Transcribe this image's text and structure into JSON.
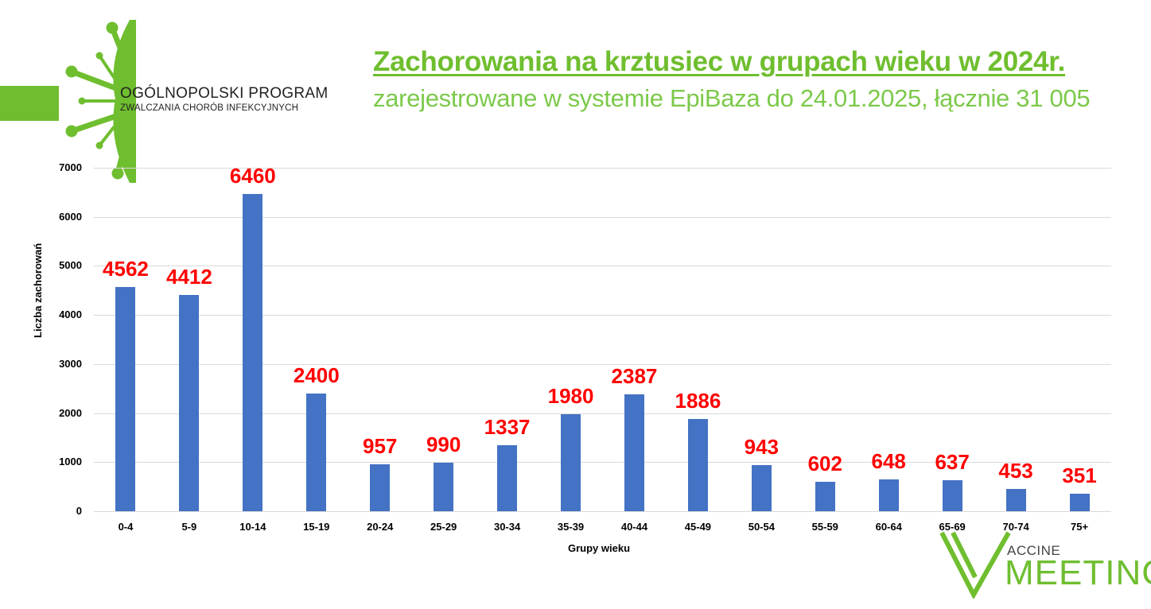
{
  "header": {
    "title": "Zachorowania na krztusiec w grupach wieku w 2024r.",
    "subtitle": "zarejestrowane w systemie EpiBaza do 24.01.2025, łącznie 31 005"
  },
  "logos": {
    "program_line1": "OGÓLNOPOLSKI PROGRAM",
    "program_line2": "ZWALCZANIA CHORÓB INFEKCYJNYCH",
    "vaccine_small": "ACCINE",
    "vaccine_big": "MEETING"
  },
  "colors": {
    "brand_green": "#6fbe2f",
    "bar": "#4472c4",
    "data_label": "#ff0000"
  },
  "chart_data": {
    "type": "bar",
    "title": "Zachorowania na krztusiec w grupach wieku w 2024r.",
    "subtitle": "zarejestrowane w systemie EpiBaza do 24.01.2025, łącznie 31 005",
    "xlabel": "Grupy wieku",
    "ylabel": "Liczba zachorowań",
    "ylim": [
      0,
      7000
    ],
    "yticks": [
      "0",
      "1000",
      "2000",
      "3000",
      "4000",
      "5000",
      "6000",
      "7000"
    ],
    "grid": true,
    "legend": "none",
    "categories": [
      "0-4",
      "5-9",
      "10-14",
      "15-19",
      "20-24",
      "25-29",
      "30-34",
      "35-39",
      "40-44",
      "45-49",
      "50-54",
      "55-59",
      "60-64",
      "65-69",
      "70-74",
      "75+"
    ],
    "values": [
      4562,
      4412,
      6460,
      2400,
      957,
      990,
      1337,
      1980,
      2387,
      1886,
      943,
      602,
      648,
      637,
      453,
      351
    ],
    "data_labels": [
      "4562",
      "4412",
      "6460",
      "2400",
      "957",
      "990",
      "1337",
      "1980",
      "2387",
      "1886",
      "943",
      "602",
      "648",
      "637",
      "453",
      "351"
    ]
  }
}
